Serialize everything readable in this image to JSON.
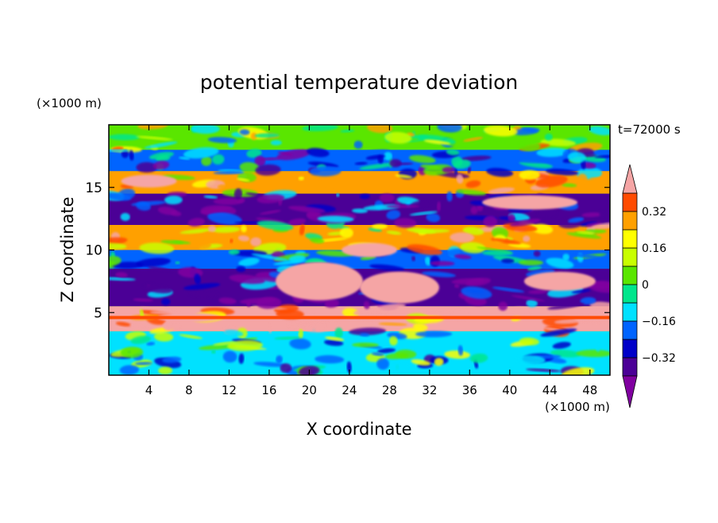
{
  "chart_data": {
    "type": "heatmap",
    "title": "potential temperature deviation",
    "xlabel": "X coordinate",
    "ylabel": "Z coordinate",
    "x_unit": "(×1000 m)",
    "y_unit": "(×1000 m)",
    "time_label": "t=72000 s",
    "xlim": [
      0,
      50
    ],
    "ylim": [
      0,
      20
    ],
    "x_ticks": [
      4,
      8,
      12,
      16,
      20,
      24,
      28,
      32,
      36,
      40,
      44,
      48
    ],
    "y_ticks": [
      5,
      10,
      15
    ],
    "colorbar": {
      "levels": [
        -0.4,
        -0.32,
        -0.24,
        -0.16,
        -0.08,
        0,
        0.08,
        0.16,
        0.24,
        0.32,
        0.4
      ],
      "labels": [
        "0.32",
        "0.16",
        "0",
        "−0.16",
        "−0.32"
      ],
      "label_values": [
        0.32,
        0.16,
        0,
        -0.16,
        -0.32
      ],
      "colors": [
        "#8000a0",
        "#4b0096",
        "#0000c8",
        "#0064ff",
        "#00e1ff",
        "#00e68c",
        "#5ae600",
        "#c8ff00",
        "#ffff00",
        "#ffa000",
        "#ff4b00",
        "#e6001e",
        "#f5a5a5"
      ],
      "extend": "both"
    },
    "bands": [
      {
        "z": [
          18,
          20
        ],
        "value": 0.06
      },
      {
        "z": [
          16,
          18
        ],
        "value": -0.2
      },
      {
        "z": [
          14.5,
          16.3
        ],
        "value": 0.3
      },
      {
        "z": [
          12,
          14.5
        ],
        "value": -0.35
      },
      {
        "z": [
          10,
          12
        ],
        "value": 0.25
      },
      {
        "z": [
          8.5,
          10
        ],
        "value": -0.2
      },
      {
        "z": [
          5.5,
          8.5
        ],
        "value": -0.38
      },
      {
        "z": [
          3.5,
          5.5
        ],
        "value": 0.42
      },
      {
        "z": [
          0,
          3.5
        ],
        "value": -0.1
      }
    ]
  }
}
